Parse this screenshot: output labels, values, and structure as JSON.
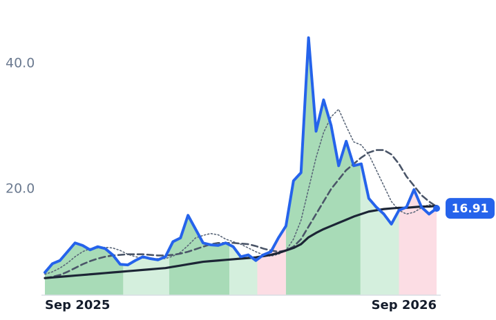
{
  "chart_data": {
    "type": "line",
    "x": [
      0,
      1,
      2,
      3,
      4,
      5,
      6,
      7,
      8,
      9,
      10,
      11,
      12,
      13,
      14,
      15,
      16,
      17,
      18,
      19,
      20,
      21,
      22,
      23,
      24,
      25,
      26,
      27,
      28,
      29,
      30,
      31,
      32,
      33,
      34,
      35,
      36,
      37,
      38,
      39,
      40,
      41,
      42,
      43,
      44,
      45,
      46,
      47,
      48,
      49,
      50,
      51,
      52
    ],
    "xlim": [
      0,
      52
    ],
    "xticks": [
      {
        "value": 0,
        "label": "Sep 2025"
      },
      {
        "value": 52,
        "label": "Sep 2026"
      }
    ],
    "ylim": [
      3,
      47
    ],
    "yticks": [
      {
        "value": 20,
        "label": "20.0"
      },
      {
        "value": 40,
        "label": "40.0"
      }
    ],
    "bands": [
      {
        "from": 0,
        "to": 10.4,
        "color": "#a8dbb7"
      },
      {
        "from": 10.4,
        "to": 16.5,
        "color": "#d4efdd"
      },
      {
        "from": 16.5,
        "to": 24.5,
        "color": "#a8dbb7"
      },
      {
        "from": 24.5,
        "to": 28.2,
        "color": "#d4efdd"
      },
      {
        "from": 28.2,
        "to": 32,
        "color": "#fcdde4"
      },
      {
        "from": 32,
        "to": 41.9,
        "color": "#a8dbb7"
      },
      {
        "from": 41.9,
        "to": 47,
        "color": "#d4efdd"
      },
      {
        "from": 47,
        "to": 52,
        "color": "#fcdde4"
      }
    ],
    "series": [
      {
        "color": "#5a6678",
        "style": "dotted",
        "width": 1.6,
        "values": [
          6.4,
          6.8,
          7.4,
          8.2,
          9.2,
          10.0,
          10.5,
          10.6,
          10.7,
          10.6,
          10.2,
          9.6,
          9.2,
          9.0,
          8.9,
          8.9,
          8.9,
          9.3,
          9.9,
          11.0,
          12.2,
          12.6,
          12.9,
          12.7,
          12.0,
          11.6,
          11.2,
          10.6,
          10.0,
          9.5,
          9.3,
          9.6,
          10.2,
          12.0,
          15.0,
          20.0,
          25.0,
          29.0,
          31.5,
          32.7,
          30.0,
          27.5,
          27.0,
          25.5,
          23.0,
          20.5,
          18.0,
          16.6,
          16.0,
          16.3,
          17.0,
          17.5,
          17.2
        ]
      },
      {
        "color": "#4a5568",
        "style": "dashed",
        "width": 2.6,
        "values": [
          5.8,
          6.0,
          6.3,
          6.8,
          7.4,
          8.0,
          8.5,
          8.9,
          9.2,
          9.4,
          9.5,
          9.6,
          9.6,
          9.6,
          9.5,
          9.4,
          9.4,
          9.5,
          9.7,
          10.0,
          10.4,
          10.8,
          11.2,
          11.4,
          11.4,
          11.4,
          11.3,
          11.2,
          10.9,
          10.5,
          10.2,
          10.0,
          10.2,
          10.8,
          12.0,
          14.0,
          16.0,
          18.0,
          20.0,
          21.5,
          23.0,
          24.0,
          25.0,
          25.8,
          26.2,
          26.2,
          25.5,
          24.0,
          22.0,
          20.5,
          19.0,
          18.0,
          17.2
        ]
      },
      {
        "color": "#1c2535",
        "style": "solid",
        "width": 3.2,
        "values": [
          5.8,
          5.9,
          6.0,
          6.1,
          6.2,
          6.3,
          6.4,
          6.5,
          6.6,
          6.7,
          6.8,
          6.9,
          7.0,
          7.1,
          7.2,
          7.3,
          7.4,
          7.6,
          7.8,
          8.0,
          8.2,
          8.4,
          8.5,
          8.6,
          8.7,
          8.8,
          8.9,
          9.0,
          9.1,
          9.3,
          9.5,
          9.8,
          10.2,
          10.6,
          11.2,
          12.3,
          13.0,
          13.6,
          14.1,
          14.6,
          15.1,
          15.6,
          16.0,
          16.4,
          16.6,
          16.8,
          16.9,
          17.0,
          17.0,
          17.1,
          17.2,
          17.2,
          17.3
        ]
      },
      {
        "color": "#2563eb",
        "style": "solid",
        "width": 4,
        "area": true,
        "values": [
          6.7,
          8.1,
          8.6,
          10.0,
          11.4,
          11.0,
          10.3,
          10.8,
          10.5,
          9.5,
          8.0,
          7.9,
          8.6,
          9.2,
          8.9,
          8.7,
          9.2,
          11.6,
          12.2,
          15.8,
          13.6,
          11.4,
          11.1,
          11.0,
          11.4,
          10.8,
          9.2,
          9.5,
          8.6,
          9.5,
          10.0,
          12.2,
          14.1,
          21.3,
          22.6,
          44.1,
          29.2,
          34.2,
          30.1,
          23.7,
          27.6,
          23.7,
          24.0,
          18.5,
          17.1,
          16.0,
          14.4,
          16.6,
          17.1,
          19.9,
          17.1,
          16.0,
          16.91
        ],
        "value_labels": [
          null,
          null,
          null,
          null,
          null,
          null,
          null,
          null,
          null,
          null,
          null,
          null,
          null,
          null,
          null,
          null,
          null,
          null,
          null,
          null,
          null,
          null,
          null,
          null,
          null,
          null,
          null,
          null,
          null,
          null,
          null,
          null,
          null,
          null,
          null,
          null,
          null,
          null,
          null,
          null,
          null,
          null,
          null,
          null,
          null,
          null,
          null,
          null,
          null,
          null,
          null,
          null,
          "16.91"
        ]
      }
    ]
  }
}
